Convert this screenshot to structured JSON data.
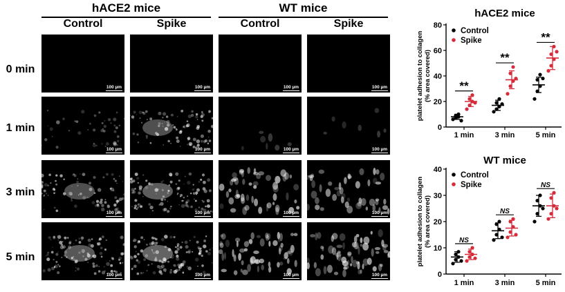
{
  "figure": {
    "groups": [
      {
        "title": "hACE2 mice",
        "columns": [
          "Control",
          "Spike"
        ]
      },
      {
        "title": "WT mice",
        "columns": [
          "Control",
          "Spike"
        ]
      }
    ],
    "rows": [
      "0 min",
      "1 min",
      "3 min",
      "5 min"
    ],
    "scale_bar": "100 µm"
  },
  "chart_data": [
    {
      "type": "scatter",
      "title": "hACE2 mice",
      "ylabel": "platelet adhesion to collagen\n(% area covered)",
      "xlabel": "",
      "categories": [
        "1 min",
        "3 min",
        "5 min"
      ],
      "ylim": [
        0,
        80
      ],
      "yticks": [
        0,
        20,
        40,
        60,
        80
      ],
      "legend": "top-left",
      "series": [
        {
          "name": "Control",
          "color": "#000000",
          "mean": [
            8,
            17,
            33
          ],
          "sd": [
            2,
            4,
            6
          ],
          "points": [
            [
              6,
              7,
              8,
              9,
              10,
              5
            ],
            [
              12,
              14,
              16,
              19,
              22,
              18
            ],
            [
              22,
              28,
              32,
              37,
              41,
              38
            ]
          ]
        },
        {
          "name": "Spike",
          "color": "#d62b3a",
          "mean": [
            20,
            37,
            54
          ],
          "sd": [
            4,
            7,
            9
          ],
          "points": [
            [
              14,
              17,
              20,
              22,
              25,
              19
            ],
            [
              26,
              32,
              36,
              42,
              47,
              38
            ],
            [
              44,
              48,
              53,
              57,
              63,
              59
            ]
          ]
        }
      ],
      "annotations": [
        "**",
        "**",
        "**"
      ]
    },
    {
      "type": "scatter",
      "title": "WT mice",
      "ylabel": "platelet adhesion to collagen\n(% area covered)",
      "xlabel": "",
      "categories": [
        "1 min",
        "3 min",
        "5 min"
      ],
      "ylim": [
        0,
        40
      ],
      "yticks": [
        0,
        10,
        20,
        30,
        40
      ],
      "legend": "top-left",
      "series": [
        {
          "name": "Control",
          "color": "#000000",
          "mean": [
            6.5,
            16.5,
            26
          ],
          "sd": [
            2,
            3,
            4
          ],
          "points": [
            [
              4,
              5.5,
              6.5,
              7.5,
              8.5,
              5
            ],
            [
              13,
              15,
              17,
              19,
              20,
              14
            ],
            [
              20,
              23,
              26,
              28,
              30,
              25
            ]
          ]
        },
        {
          "name": "Spike",
          "color": "#d62b3a",
          "mean": [
            7.5,
            17.5,
            26
          ],
          "sd": [
            2,
            3,
            4.5
          ],
          "points": [
            [
              5,
              6.5,
              7.5,
              8.5,
              10,
              6
            ],
            [
              14,
              16,
              18,
              20,
              21,
              15
            ],
            [
              21,
              23,
              26,
              29,
              31,
              25
            ]
          ]
        }
      ],
      "annotations": [
        "NS",
        "NS",
        "NS"
      ]
    }
  ]
}
